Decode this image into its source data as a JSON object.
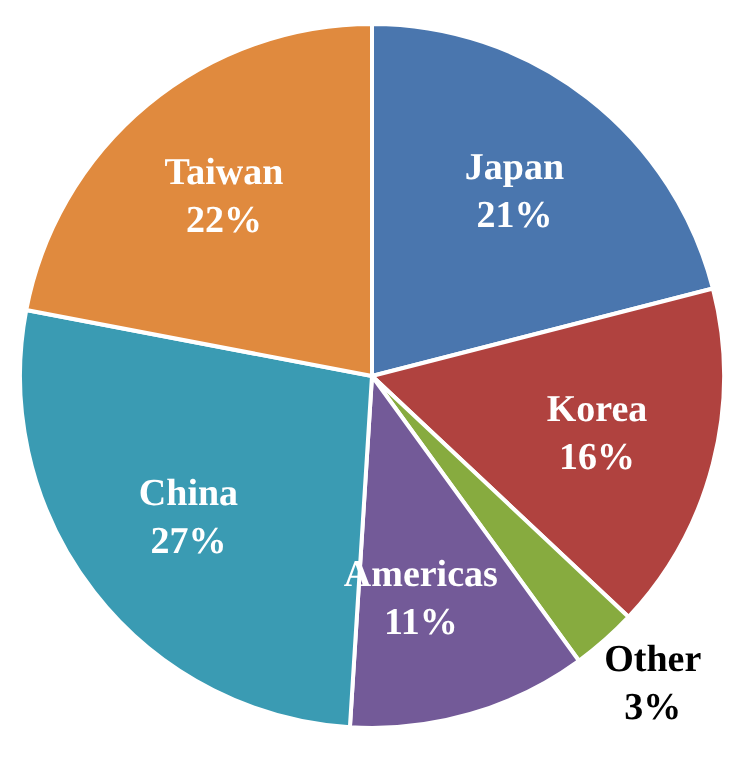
{
  "chart_data": {
    "type": "pie",
    "categories": [
      "Japan",
      "Korea",
      "Other",
      "Americas",
      "China",
      "Taiwan"
    ],
    "values": [
      21,
      16,
      3,
      11,
      27,
      22
    ],
    "colors": [
      "#4a76ae",
      "#b0423f",
      "#87ab3f",
      "#735a98",
      "#3a9bb3",
      "#e08a3e"
    ],
    "legend": false,
    "value_labels": [
      "21%",
      "16%",
      "3%",
      "11%",
      "27%",
      "22%"
    ]
  }
}
